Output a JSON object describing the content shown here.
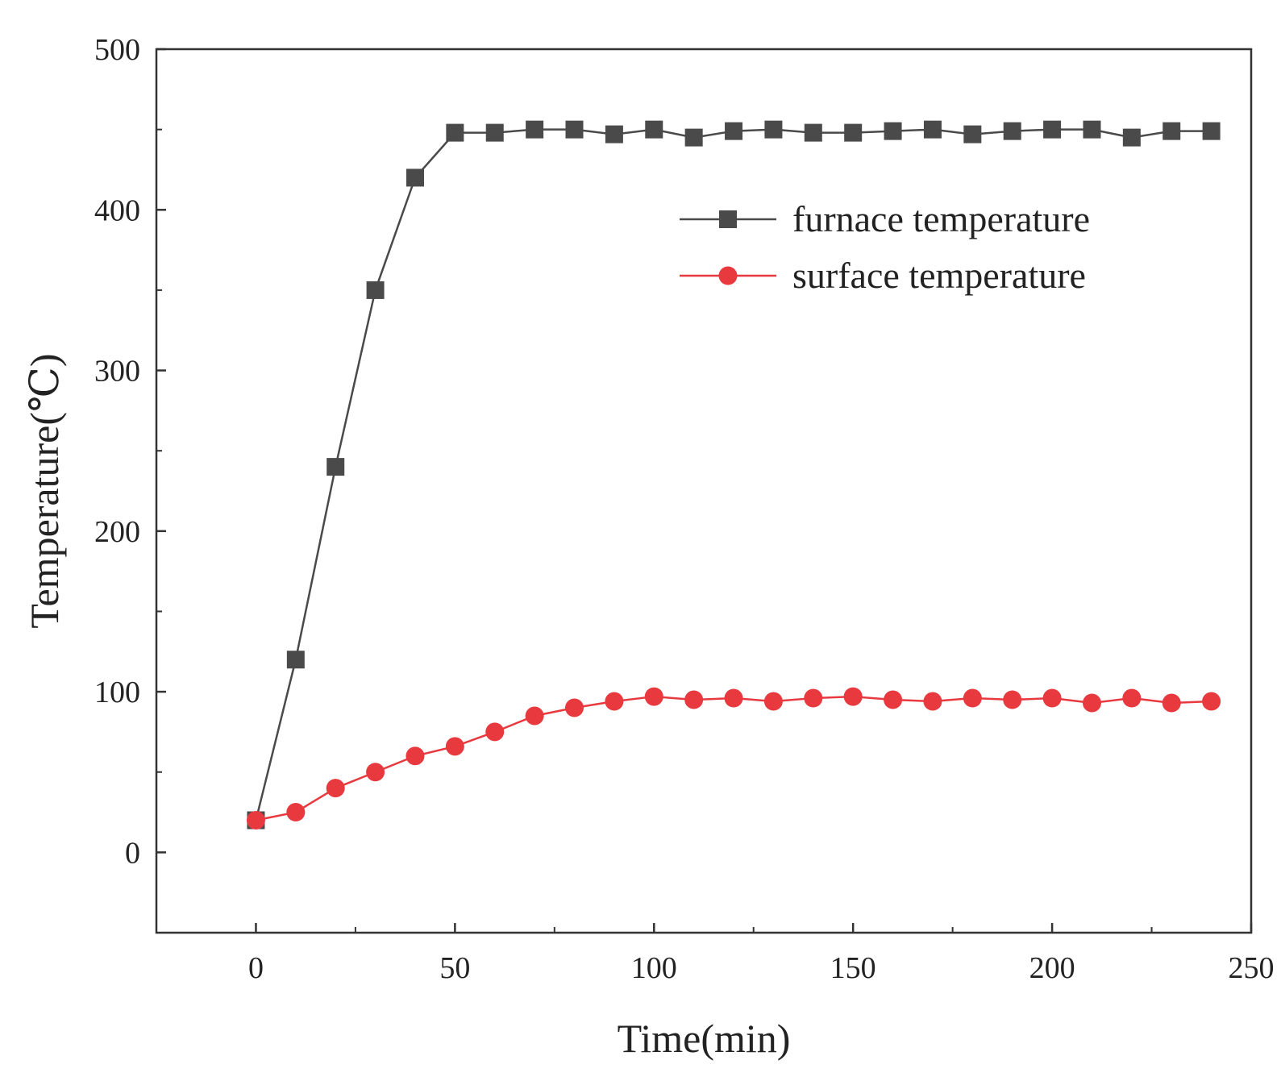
{
  "chart_data": {
    "type": "line",
    "title": "",
    "xlabel": "Time(min)",
    "ylabel": "Temperature(℃)",
    "xlim": [
      -25,
      250
    ],
    "ylim": [
      -50,
      500
    ],
    "x_ticks": [
      0,
      50,
      100,
      150,
      200,
      250
    ],
    "y_ticks": [
      0,
      100,
      200,
      300,
      400,
      500
    ],
    "grid": false,
    "legend_position": "top-right",
    "x": [
      0,
      10,
      20,
      30,
      40,
      50,
      60,
      70,
      80,
      90,
      100,
      110,
      120,
      130,
      140,
      150,
      160,
      170,
      180,
      190,
      200,
      210,
      220,
      230,
      240
    ],
    "series": [
      {
        "name": "furnace temperature",
        "color": "#4a4a4a",
        "marker": "square",
        "values": [
          20,
          120,
          240,
          350,
          420,
          448,
          448,
          450,
          450,
          447,
          450,
          445,
          449,
          450,
          448,
          448,
          449,
          450,
          447,
          449,
          450,
          450,
          445,
          449,
          449
        ]
      },
      {
        "name": "surface temperature",
        "color": "#e8393f",
        "marker": "circle",
        "values": [
          20,
          25,
          40,
          50,
          60,
          66,
          75,
          85,
          90,
          94,
          97,
          95,
          96,
          94,
          96,
          97,
          95,
          94,
          96,
          95,
          96,
          93,
          96,
          93,
          94
        ]
      }
    ]
  }
}
